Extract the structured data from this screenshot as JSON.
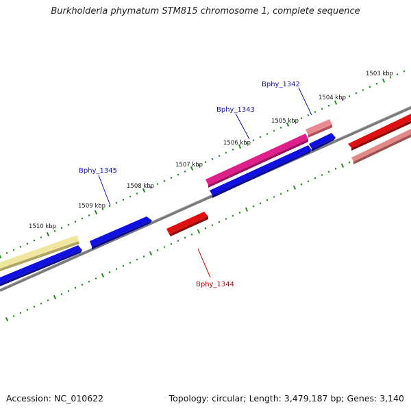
{
  "title": "Burkholderia phymatum STM815 chromosome 1, complete sequence",
  "footer": {
    "accession": "Accession: NC_010622",
    "summary": "Topology: circular; Length: 3,479,187 bp; Genes: 3,140"
  },
  "colors": {
    "backbone": "#808080",
    "tick": "#1a8a1a",
    "forward_cds": "#1010e0",
    "reverse_cds": "#e01010",
    "forward_label": "#1010c0",
    "reverse_label": "#cc0000",
    "yellow_feature": "#f0e6a0",
    "magenta_feature": "#e0208a",
    "pink_feature": "#e07880"
  },
  "scale_labels": [
    "1503 kbp",
    "1504 kbp",
    "1505 kbp",
    "1506 kbp",
    "1507 kbp",
    "1508 kbp",
    "1509 kbp",
    "1510 kbp"
  ],
  "gene_labels": [
    {
      "text": "Bphy_1342",
      "strand": "forward"
    },
    {
      "text": "Bphy_1343",
      "strand": "forward"
    },
    {
      "text": "Bphy_1345",
      "strand": "forward"
    },
    {
      "text": "Bphy_1344",
      "strand": "reverse"
    }
  ]
}
